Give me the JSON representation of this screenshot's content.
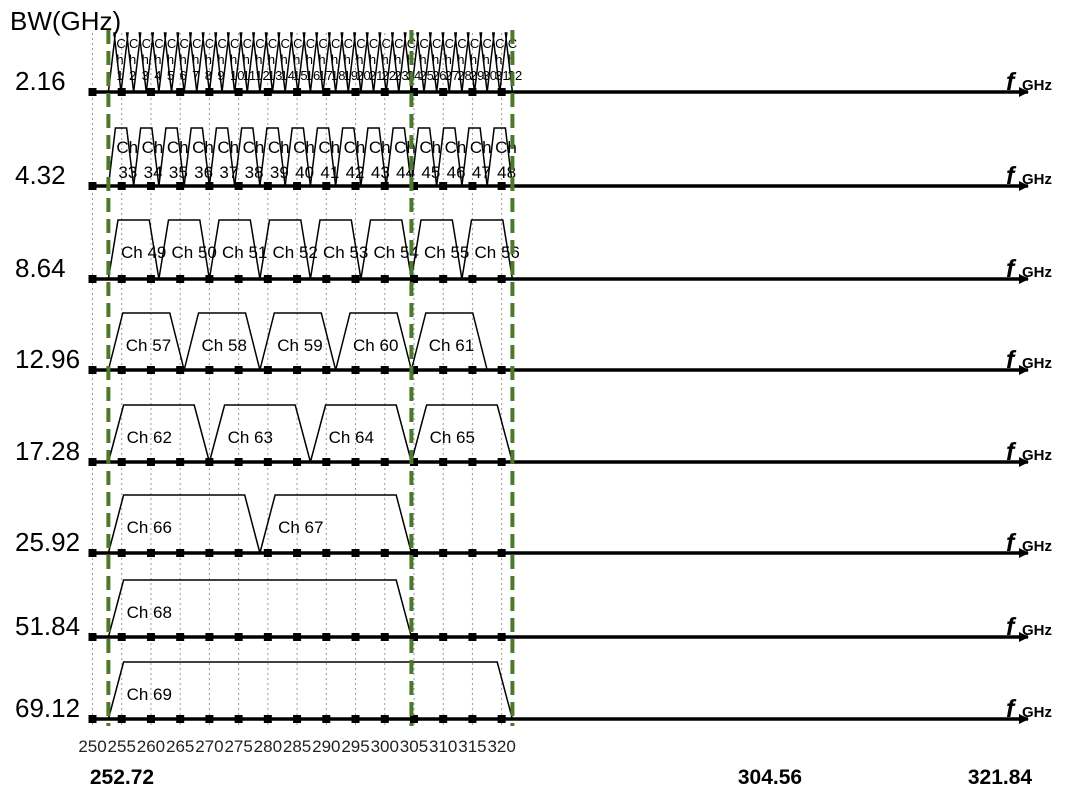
{
  "header": {
    "bw_label": "BW(GHz)"
  },
  "axis": {
    "unit_letter": "f",
    "unit_sub": "GHz",
    "ticks": [
      "250",
      "255",
      "260",
      "265",
      "270",
      "275",
      "280",
      "285",
      "290",
      "295",
      "300",
      "305",
      "310",
      "315",
      "320"
    ],
    "tick_values": [
      250,
      255,
      260,
      265,
      270,
      275,
      280,
      285,
      290,
      295,
      300,
      305,
      310,
      315,
      320
    ]
  },
  "boundaries": {
    "labels": [
      "252.72",
      "304.56",
      "321.84"
    ],
    "values": [
      252.72,
      304.56,
      321.84
    ],
    "color": "#4a7a2a"
  },
  "rows": [
    {
      "bw": "2.16",
      "first": 1,
      "count": 32,
      "bandwidth": 2.16,
      "start": 252.72
    },
    {
      "bw": "4.32",
      "first": 33,
      "count": 16,
      "bandwidth": 4.32,
      "start": 252.72
    },
    {
      "bw": "8.64",
      "first": 49,
      "count": 8,
      "bandwidth": 8.64,
      "start": 252.72
    },
    {
      "bw": "12.96",
      "first": 57,
      "count": 5,
      "bandwidth": 12.96,
      "start": 252.72
    },
    {
      "bw": "17.28",
      "first": 62,
      "count": 4,
      "bandwidth": 17.28,
      "start": 252.72
    },
    {
      "bw": "25.92",
      "first": 66,
      "count": 2,
      "bandwidth": 25.92,
      "start": 252.72
    },
    {
      "bw": "51.84",
      "first": 68,
      "count": 1,
      "bandwidth": 51.84,
      "start": 252.72
    },
    {
      "bw": "69.12",
      "first": 69,
      "count": 1,
      "bandwidth": 69.12,
      "start": 252.72
    }
  ],
  "labels": {
    "ch_prefix": "Ch",
    "ch_prefix_narrow": [
      "C",
      "h"
    ]
  }
}
